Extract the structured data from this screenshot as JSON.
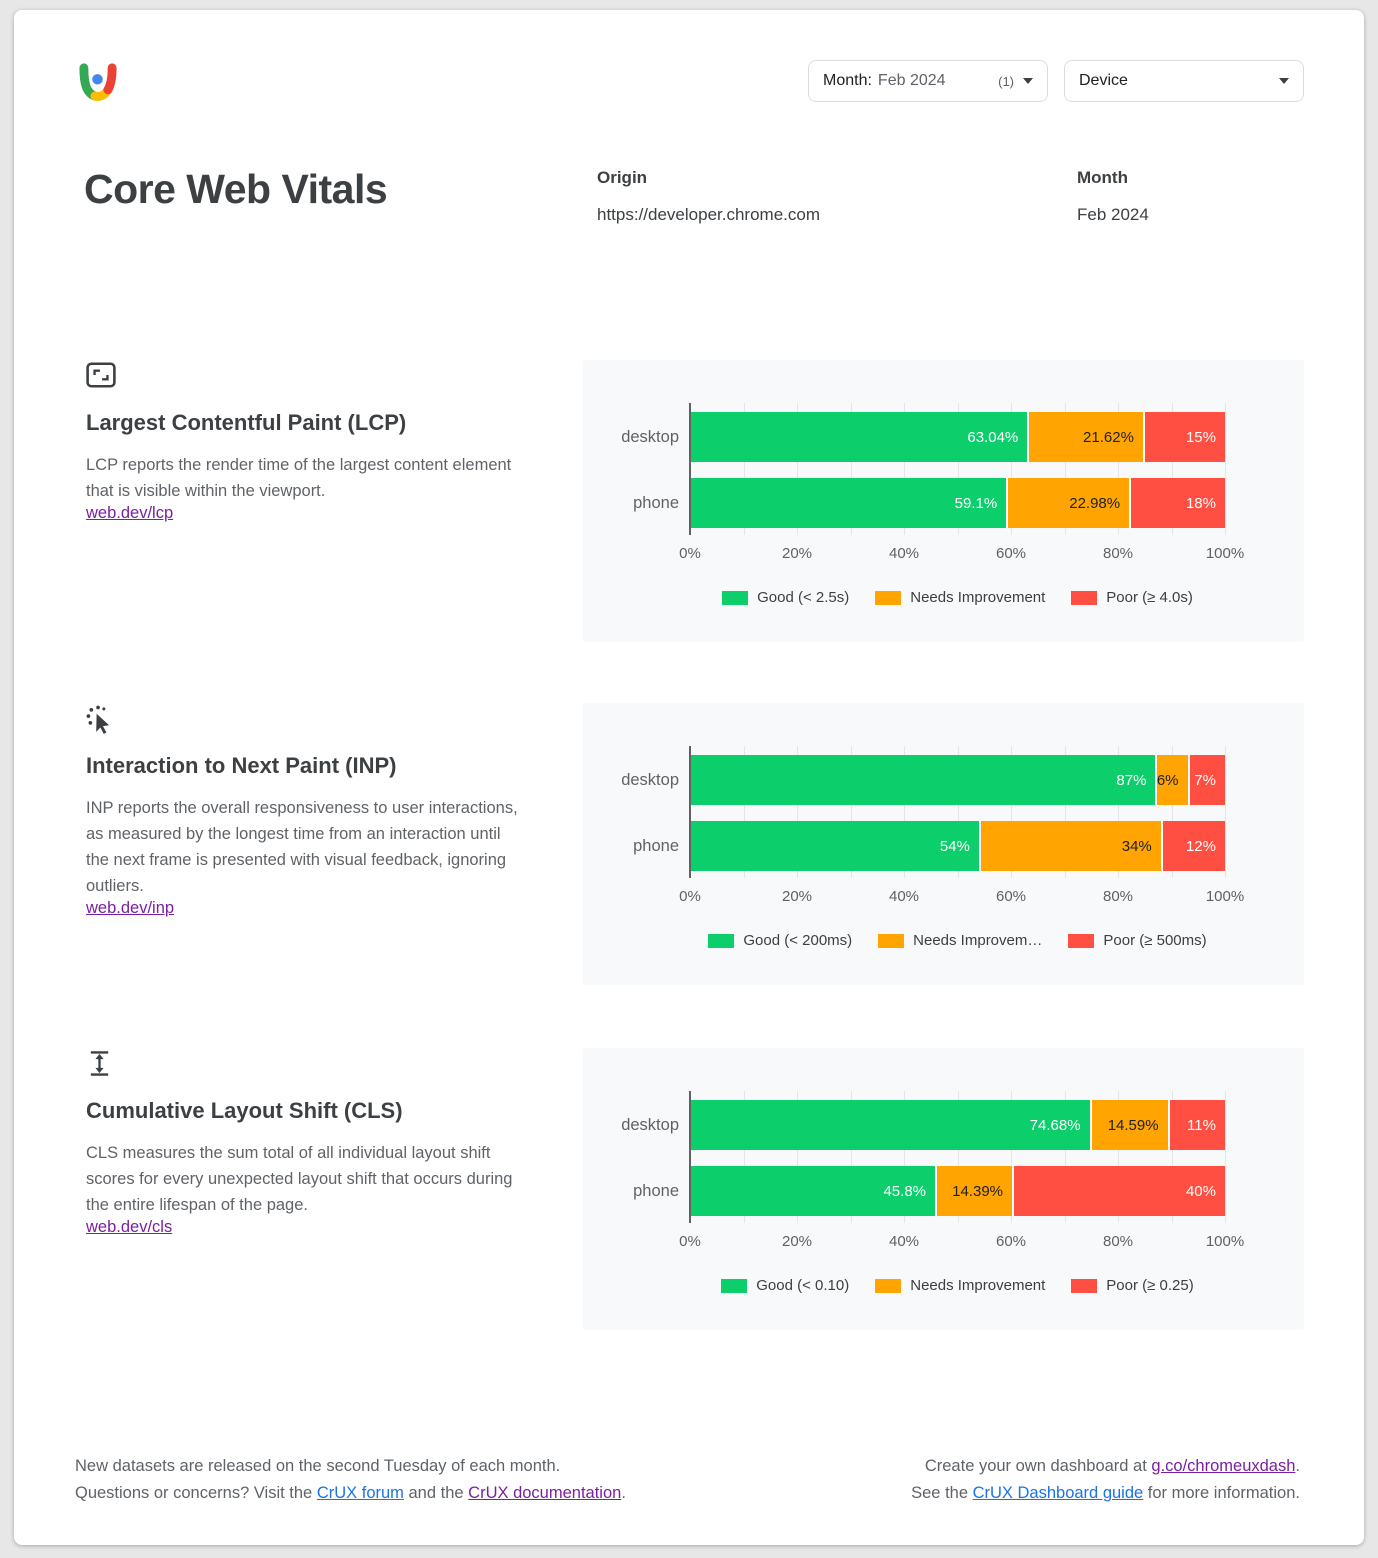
{
  "colors": {
    "good": "#0cce6b",
    "needs_improvement": "#ffa400",
    "poor": "#ff4e42",
    "link_blue": "#1a73e8",
    "link_purple": "#7b1fa2",
    "panel_bg": "#f8f9fa"
  },
  "header": {
    "title": "Core Web Vitals",
    "filters": {
      "month": {
        "label": "Month:",
        "value": "Feb 2024",
        "count": "(1)"
      },
      "device": {
        "label": "Device"
      }
    },
    "origin": {
      "label": "Origin",
      "value": "https://developer.chrome.com"
    },
    "month": {
      "label": "Month",
      "value": "Feb 2024"
    }
  },
  "metrics": [
    {
      "icon": "fit-screen-icon",
      "title": "Largest Contentful Paint (LCP)",
      "description": "LCP reports the render time of the largest content element that is visible within the viewport.",
      "link": "web.dev/lcp"
    },
    {
      "icon": "pointer-click-icon",
      "title": "Interaction to Next Paint (INP)",
      "description": "INP reports the overall responsiveness to user interactions, as measured by the longest time from an interaction until the next frame is presented with visual feedback, ignoring outliers.",
      "link": "web.dev/inp"
    },
    {
      "icon": "height-icon",
      "title": "Cumulative Layout Shift (CLS)",
      "description": "CLS measures the sum total of all individual layout shift scores for every unexpected layout shift that occurs during the entire lifespan of the page.",
      "link": "web.dev/cls"
    }
  ],
  "chart_data": [
    {
      "type": "bar",
      "stacked": true,
      "orientation": "horizontal",
      "metric": "LCP",
      "categories": [
        "desktop",
        "phone"
      ],
      "series": [
        {
          "name": "Good (< 2.5s)",
          "color": "#0cce6b",
          "label_color": "#ffffff",
          "values": [
            63.04,
            59.1
          ],
          "labels": [
            "63.04%",
            "59.1%"
          ]
        },
        {
          "name": "Needs Improvement",
          "color": "#ffa400",
          "label_color": "#212121",
          "values": [
            21.62,
            22.98
          ],
          "labels": [
            "21.62%",
            "22.98%"
          ]
        },
        {
          "name": "Poor (≥ 4.0s)",
          "color": "#ff4e42",
          "label_color": "#ffffff",
          "values": [
            15.34,
            17.92
          ],
          "labels": [
            "15%",
            "18%"
          ]
        }
      ],
      "xlim": [
        0,
        100
      ],
      "grid": true,
      "xticks": [
        "0%",
        "20%",
        "40%",
        "60%",
        "80%",
        "100%"
      ],
      "legend_position": "bottom",
      "legend_labels": [
        "Good (< 2.5s)",
        "Needs Improvement",
        "Poor (≥ 4.0s)"
      ]
    },
    {
      "type": "bar",
      "stacked": true,
      "orientation": "horizontal",
      "metric": "INP",
      "categories": [
        "desktop",
        "phone"
      ],
      "series": [
        {
          "name": "Good (< 200ms)",
          "color": "#0cce6b",
          "label_color": "#ffffff",
          "values": [
            87,
            54
          ],
          "labels": [
            "87%",
            "54%"
          ]
        },
        {
          "name": "Needs Improvement",
          "color": "#ffa400",
          "label_color": "#212121",
          "values": [
            6,
            34
          ],
          "labels": [
            "6%",
            "34%"
          ]
        },
        {
          "name": "Poor (≥ 500ms)",
          "color": "#ff4e42",
          "label_color": "#ffffff",
          "values": [
            7,
            12
          ],
          "labels": [
            "7%",
            "12%"
          ]
        }
      ],
      "xlim": [
        0,
        100
      ],
      "grid": true,
      "xticks": [
        "0%",
        "20%",
        "40%",
        "60%",
        "80%",
        "100%"
      ],
      "legend_position": "bottom",
      "legend_labels": [
        "Good (< 200ms)",
        "Needs Improvem…",
        "Poor (≥ 500ms)"
      ]
    },
    {
      "type": "bar",
      "stacked": true,
      "orientation": "horizontal",
      "metric": "CLS",
      "categories": [
        "desktop",
        "phone"
      ],
      "series": [
        {
          "name": "Good (< 0.10)",
          "color": "#0cce6b",
          "label_color": "#ffffff",
          "values": [
            74.68,
            45.8
          ],
          "labels": [
            "74.68%",
            "45.8%"
          ]
        },
        {
          "name": "Needs Improvement",
          "color": "#ffa400",
          "label_color": "#212121",
          "values": [
            14.59,
            14.39
          ],
          "labels": [
            "14.59%",
            "14.39%"
          ]
        },
        {
          "name": "Poor (≥ 0.25)",
          "color": "#ff4e42",
          "label_color": "#ffffff",
          "values": [
            10.73,
            39.81
          ],
          "labels": [
            "11%",
            "40%"
          ]
        }
      ],
      "xlim": [
        0,
        100
      ],
      "grid": true,
      "xticks": [
        "0%",
        "20%",
        "40%",
        "60%",
        "80%",
        "100%"
      ],
      "legend_position": "bottom",
      "legend_labels": [
        "Good (< 0.10)",
        "Needs Improvement",
        "Poor (≥ 0.25)"
      ]
    }
  ],
  "footer": {
    "left": {
      "line1": "New datasets are released on the second Tuesday of each month.",
      "line2": [
        {
          "text": "Questions or concerns? Visit the "
        },
        {
          "text": "CrUX forum",
          "link": "blue"
        },
        {
          "text": " and the "
        },
        {
          "text": "CrUX documentation",
          "link": "purple"
        },
        {
          "text": "."
        }
      ]
    },
    "right": {
      "line1": [
        {
          "text": "Create your own dashboard at "
        },
        {
          "text": "g.co/chromeuxdash",
          "link": "purple"
        },
        {
          "text": "."
        }
      ],
      "line2": [
        {
          "text": "See the "
        },
        {
          "text": "CrUX Dashboard guide",
          "link": "blue"
        },
        {
          "text": " for more information."
        }
      ]
    }
  }
}
